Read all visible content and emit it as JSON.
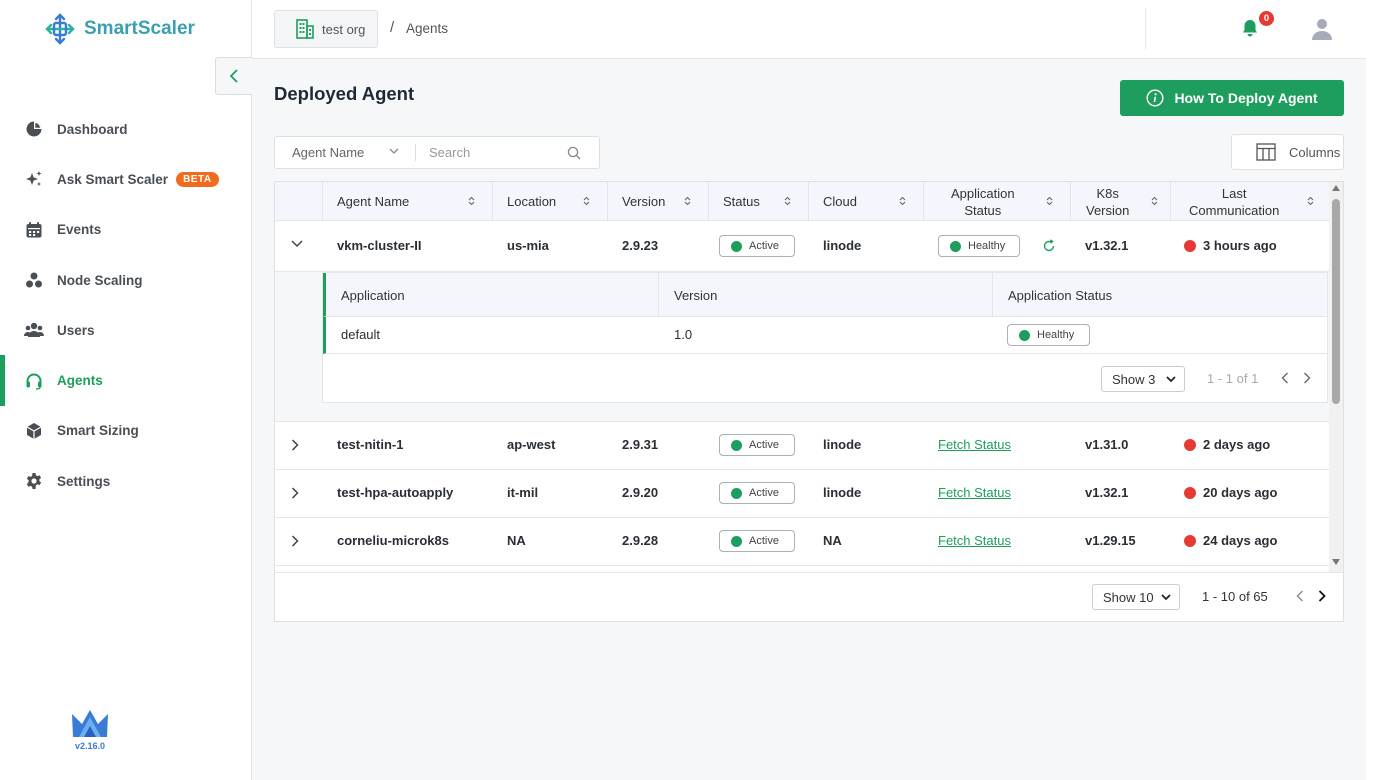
{
  "app": {
    "brand": "SmartScaler",
    "version": "v2.16.0"
  },
  "sidebar": {
    "items": [
      {
        "label": "Dashboard",
        "icon": "pie-chart-icon"
      },
      {
        "label": "Ask Smart Scaler",
        "icon": "sparkle-icon",
        "badge": "BETA"
      },
      {
        "label": "Events",
        "icon": "calendar-icon"
      },
      {
        "label": "Node Scaling",
        "icon": "nodes-icon"
      },
      {
        "label": "Users",
        "icon": "users-icon"
      },
      {
        "label": "Agents",
        "icon": "headset-icon",
        "active": true
      },
      {
        "label": "Smart Sizing",
        "icon": "cube-icon"
      },
      {
        "label": "Settings",
        "icon": "gear-icon"
      }
    ]
  },
  "topbar": {
    "org": "test org",
    "separator": "/",
    "breadcrumb": "Agents",
    "notification_count": "0"
  },
  "page": {
    "title": "Deployed Agent",
    "deploy_button": "How To Deploy Agent",
    "columns_button": "Columns"
  },
  "filter": {
    "field": "Agent Name",
    "placeholder": "Search"
  },
  "table": {
    "columns": [
      "Agent Name",
      "Location",
      "Version",
      "Status",
      "Cloud",
      "Application Status",
      "K8s Version",
      "Last Communication"
    ],
    "columns_split": {
      "app_status": [
        "Application",
        "Status"
      ],
      "k8s": [
        "K8s",
        "Version"
      ],
      "last": [
        "Last",
        "Communication"
      ]
    },
    "rows": [
      {
        "name": "vkm-cluster-II",
        "location": "us-mia",
        "version": "2.9.23",
        "status": "Active",
        "cloud": "linode",
        "app_status": "Healthy",
        "k8s": "v1.32.1",
        "last": "3 hours ago",
        "expanded": true
      },
      {
        "name": "test-nitin-1",
        "location": "ap-west",
        "version": "2.9.31",
        "status": "Active",
        "cloud": "linode",
        "app_status": "Fetch Status",
        "k8s": "v1.31.0",
        "last": "2 days ago"
      },
      {
        "name": "test-hpa-autoapply",
        "location": "it-mil",
        "version": "2.9.20",
        "status": "Active",
        "cloud": "linode",
        "app_status": "Fetch Status",
        "k8s": "v1.32.1",
        "last": "20 days ago"
      },
      {
        "name": "corneliu-microk8s",
        "location": "NA",
        "version": "2.9.28",
        "status": "Active",
        "cloud": "NA",
        "app_status": "Fetch Status",
        "k8s": "v1.29.15",
        "last": "24 days ago"
      }
    ],
    "nested": {
      "columns": [
        "Application",
        "Version",
        "Application Status"
      ],
      "rows": [
        {
          "app": "default",
          "version": "1.0",
          "status": "Healthy"
        }
      ],
      "page_size": "Show 3",
      "range": "1 - 1 of 1"
    },
    "page_size": "Show 10",
    "range": "1 - 10 of 65"
  },
  "colors": {
    "accent": "#1e9e5e",
    "danger": "#e53935",
    "beta": "#f26a1b"
  }
}
